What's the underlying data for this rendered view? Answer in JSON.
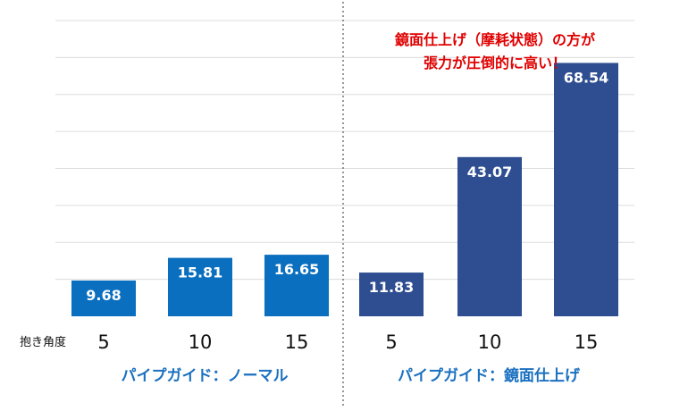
{
  "chart_data": {
    "type": "bar",
    "xlabel": "抱き角度",
    "ylim": [
      0,
      80
    ],
    "grid": true,
    "colors": {
      "normal": "#0a6fbf",
      "mirror": "#2e4e91",
      "annotation": "#e00000",
      "group_label": "#1a70c0"
    },
    "groups": [
      {
        "label": "パイプガイド：ノーマル",
        "color_key": "normal",
        "categories": [
          "5",
          "10",
          "15"
        ],
        "values": [
          9.68,
          15.81,
          16.65
        ],
        "value_labels": [
          "9.68",
          "15.81",
          "16.65"
        ]
      },
      {
        "label": "パイプガイド：鏡面仕上げ",
        "color_key": "mirror",
        "categories": [
          "5",
          "10",
          "15"
        ],
        "values": [
          11.83,
          43.07,
          68.54
        ],
        "value_labels": [
          "11.83",
          "43.07",
          "68.54"
        ]
      }
    ],
    "annotation": [
      "鏡面仕上げ（摩耗状態）の方が",
      "張力が圧倒的に高い！"
    ]
  }
}
